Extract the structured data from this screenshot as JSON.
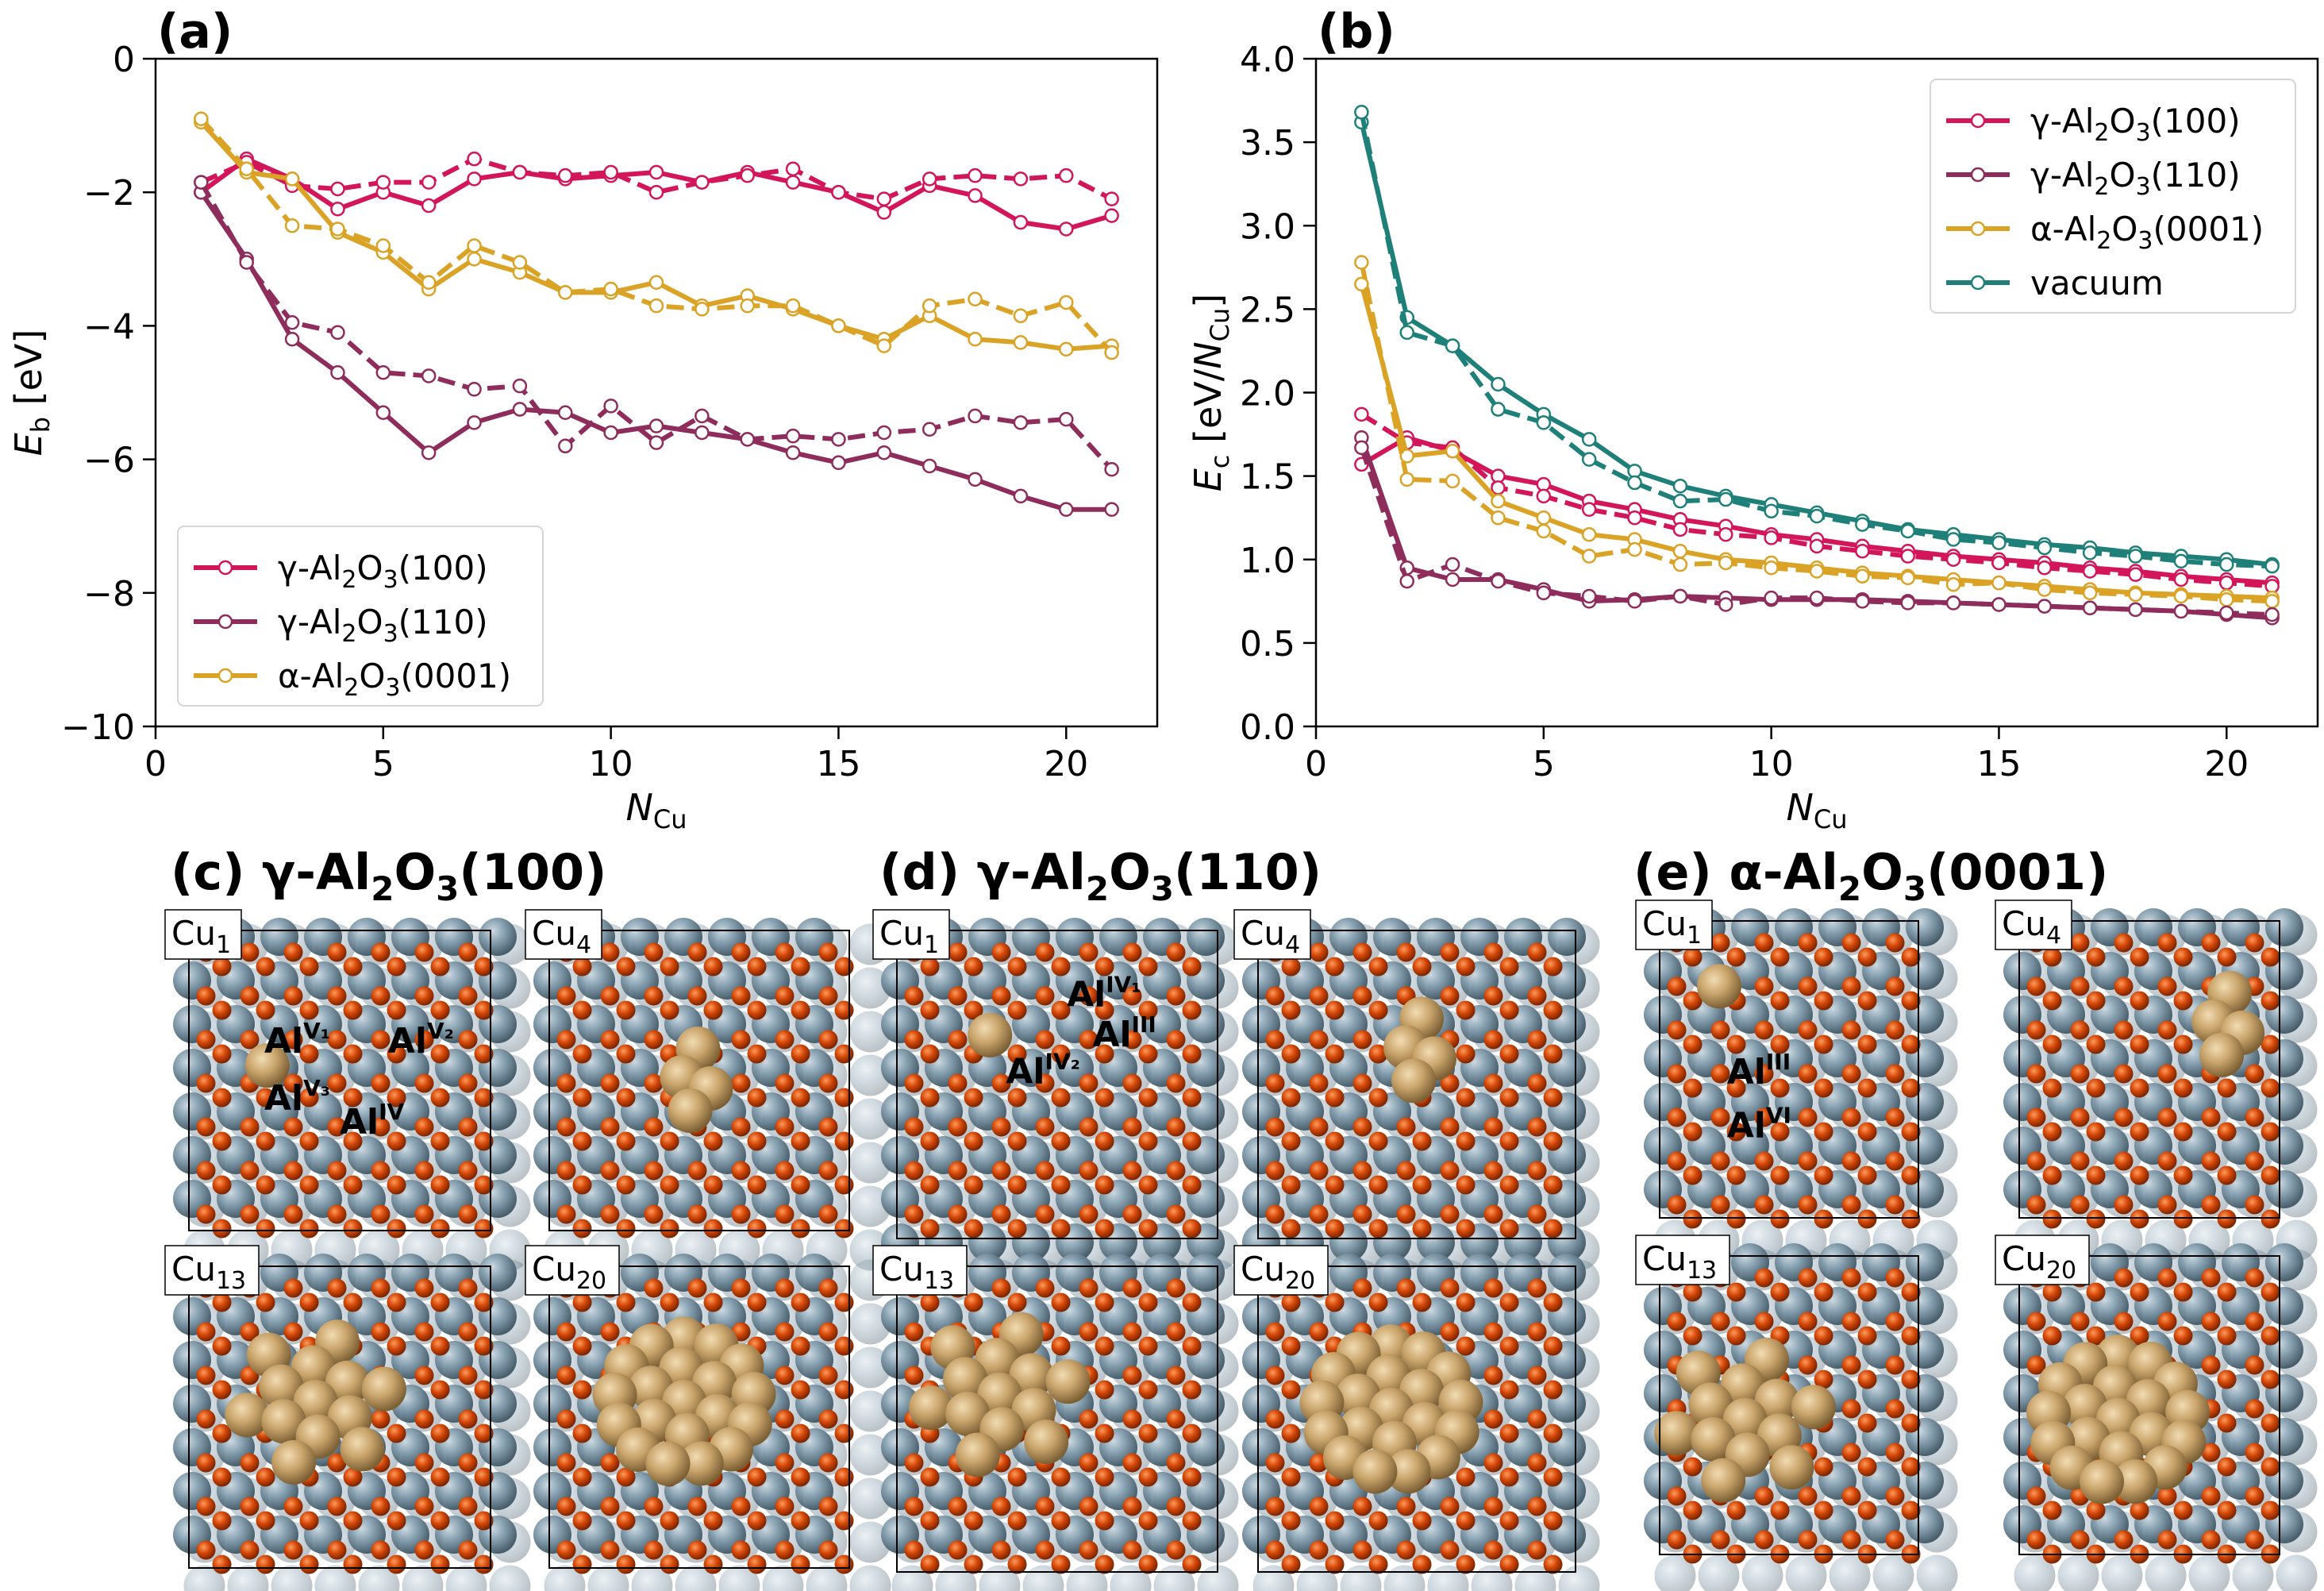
{
  "colors": {
    "g100": "#d3155a",
    "g110": "#8e2c5c",
    "a0001": "#dba325",
    "vacuum": "#1e8079",
    "al": "#7f9aab",
    "o": "#d44707",
    "cu": "#c9a46b",
    "frame": "#000000"
  },
  "chart_data": [
    {
      "type": "line",
      "panel_label": "(a)",
      "xlabel": "N",
      "xlabel_sub": "Cu",
      "ylabel": "E",
      "ylabel_sub": "b",
      "ylabel_unit": " [eV]",
      "xlim": [
        0,
        22
      ],
      "ylim": [
        -10,
        0
      ],
      "xticks": [
        0,
        5,
        10,
        15,
        20
      ],
      "yticks": [
        -10,
        -8,
        -6,
        -4,
        -2,
        0
      ],
      "ytick_labels": [
        "−10",
        "−8",
        "−6",
        "−4",
        "−2",
        "0"
      ],
      "x": [
        1,
        2,
        3,
        4,
        5,
        6,
        7,
        8,
        9,
        10,
        11,
        12,
        13,
        14,
        15,
        16,
        17,
        18,
        19,
        20,
        21
      ],
      "legend_loc": "lower-left",
      "legend": [
        {
          "key": "g100",
          "pre": "γ-Al",
          "s1": "2",
          "mid": "O",
          "s2": "3",
          "post": "(100)"
        },
        {
          "key": "g110",
          "pre": "γ-Al",
          "s1": "2",
          "mid": "O",
          "s2": "3",
          "post": "(110)"
        },
        {
          "key": "a0001",
          "pre": "α-Al",
          "s1": "2",
          "mid": "O",
          "s2": "3",
          "post": "(0001)"
        }
      ],
      "series": [
        {
          "key": "g100",
          "style": "solid",
          "values": [
            -2.0,
            -1.5,
            -1.8,
            -2.25,
            -2.0,
            -2.2,
            -1.8,
            -1.7,
            -1.8,
            -1.75,
            -1.7,
            -1.85,
            -1.7,
            -1.85,
            -2.0,
            -2.3,
            -1.9,
            -2.05,
            -2.45,
            -2.55,
            -2.35
          ]
        },
        {
          "key": "g100",
          "style": "dashed",
          "values": [
            -1.85,
            -1.55,
            -1.9,
            -1.95,
            -1.85,
            -1.85,
            -1.5,
            -1.7,
            -1.75,
            -1.7,
            -2.0,
            -1.85,
            -1.75,
            -1.65,
            -2.0,
            -2.1,
            -1.8,
            -1.75,
            -1.8,
            -1.75,
            -2.1
          ]
        },
        {
          "key": "g110",
          "style": "solid",
          "values": [
            -2.0,
            -3.0,
            -4.2,
            -4.7,
            -5.3,
            -5.9,
            -5.45,
            -5.25,
            -5.3,
            -5.6,
            -5.5,
            -5.6,
            -5.7,
            -5.9,
            -6.05,
            -5.9,
            -6.1,
            -6.3,
            -6.55,
            -6.75,
            -6.75
          ]
        },
        {
          "key": "g110",
          "style": "dashed",
          "values": [
            -1.85,
            -3.05,
            -3.95,
            -4.1,
            -4.7,
            -4.75,
            -4.95,
            -4.9,
            -5.8,
            -5.2,
            -5.75,
            -5.35,
            -5.7,
            -5.65,
            -5.7,
            -5.6,
            -5.55,
            -5.35,
            -5.45,
            -5.4,
            -6.15
          ]
        },
        {
          "key": "a0001",
          "style": "solid",
          "values": [
            -0.95,
            -1.7,
            -1.8,
            -2.6,
            -2.9,
            -3.45,
            -3.0,
            -3.2,
            -3.5,
            -3.5,
            -3.35,
            -3.7,
            -3.55,
            -3.75,
            -4.0,
            -4.2,
            -3.85,
            -4.2,
            -4.25,
            -4.35,
            -4.3
          ]
        },
        {
          "key": "a0001",
          "style": "dashed",
          "values": [
            -0.9,
            -1.65,
            -2.5,
            -2.55,
            -2.8,
            -3.35,
            -2.8,
            -3.05,
            -3.5,
            -3.45,
            -3.7,
            -3.75,
            -3.7,
            -3.7,
            -4.0,
            -4.3,
            -3.7,
            -3.6,
            -3.85,
            -3.65,
            -4.4
          ]
        }
      ]
    },
    {
      "type": "line",
      "panel_label": "(b)",
      "xlabel": "N",
      "xlabel_sub": "Cu",
      "ylabel": "E",
      "ylabel_sub": "c",
      "ylabel_unit_pre": " [eV/",
      "ylabel_unit_n": "N",
      "ylabel_unit_sub": "Cu",
      "ylabel_unit_post": "]",
      "xlim": [
        0,
        22
      ],
      "ylim": [
        0,
        4
      ],
      "xticks": [
        0,
        5,
        10,
        15,
        20
      ],
      "yticks": [
        0,
        0.5,
        1.0,
        1.5,
        2.0,
        2.5,
        3.0,
        3.5,
        4.0
      ],
      "ytick_labels": [
        "0.0",
        "0.5",
        "1.0",
        "1.5",
        "2.0",
        "2.5",
        "3.0",
        "3.5",
        "4.0"
      ],
      "x": [
        1,
        2,
        3,
        4,
        5,
        6,
        7,
        8,
        9,
        10,
        11,
        12,
        13,
        14,
        15,
        16,
        17,
        18,
        19,
        20,
        21
      ],
      "legend_loc": "upper-right",
      "legend": [
        {
          "key": "g100",
          "pre": "γ-Al",
          "s1": "2",
          "mid": "O",
          "s2": "3",
          "post": "(100)"
        },
        {
          "key": "g110",
          "pre": "γ-Al",
          "s1": "2",
          "mid": "O",
          "s2": "3",
          "post": "(110)"
        },
        {
          "key": "a0001",
          "pre": "α-Al",
          "s1": "2",
          "mid": "O",
          "s2": "3",
          "post": "(0001)"
        },
        {
          "key": "vacuum",
          "pre": "vacuum",
          "s1": "",
          "mid": "",
          "s2": "",
          "post": ""
        }
      ],
      "series": [
        {
          "key": "vacuum",
          "style": "solid",
          "values": [
            3.62,
            2.45,
            2.28,
            2.05,
            1.87,
            1.72,
            1.53,
            1.44,
            1.38,
            1.33,
            1.28,
            1.23,
            1.18,
            1.15,
            1.12,
            1.09,
            1.07,
            1.04,
            1.02,
            1.0,
            0.97
          ]
        },
        {
          "key": "vacuum",
          "style": "dashed",
          "values": [
            3.68,
            2.36,
            2.28,
            1.9,
            1.82,
            1.6,
            1.46,
            1.35,
            1.36,
            1.29,
            1.26,
            1.21,
            1.17,
            1.12,
            1.1,
            1.07,
            1.04,
            1.02,
            0.99,
            0.97,
            0.96
          ]
        },
        {
          "key": "g100",
          "style": "solid",
          "values": [
            1.57,
            1.73,
            1.65,
            1.5,
            1.45,
            1.35,
            1.3,
            1.24,
            1.2,
            1.15,
            1.12,
            1.08,
            1.05,
            1.02,
            1.0,
            0.98,
            0.95,
            0.93,
            0.9,
            0.88,
            0.86
          ]
        },
        {
          "key": "g100",
          "style": "dashed",
          "values": [
            1.87,
            1.7,
            1.67,
            1.43,
            1.38,
            1.3,
            1.25,
            1.18,
            1.15,
            1.13,
            1.08,
            1.05,
            1.02,
            1.0,
            0.98,
            0.95,
            0.93,
            0.91,
            0.88,
            0.86,
            0.84
          ]
        },
        {
          "key": "a0001",
          "style": "solid",
          "values": [
            2.65,
            1.62,
            1.65,
            1.35,
            1.25,
            1.15,
            1.12,
            1.05,
            1.0,
            0.98,
            0.95,
            0.92,
            0.9,
            0.88,
            0.86,
            0.84,
            0.82,
            0.8,
            0.79,
            0.78,
            0.77
          ]
        },
        {
          "key": "a0001",
          "style": "dashed",
          "values": [
            2.78,
            1.48,
            1.47,
            1.25,
            1.17,
            1.02,
            1.06,
            0.97,
            0.98,
            0.95,
            0.93,
            0.9,
            0.89,
            0.85,
            0.86,
            0.82,
            0.8,
            0.79,
            0.78,
            0.76,
            0.75
          ]
        },
        {
          "key": "g110",
          "style": "solid",
          "values": [
            1.73,
            0.95,
            0.88,
            0.88,
            0.82,
            0.75,
            0.76,
            0.78,
            0.77,
            0.76,
            0.76,
            0.76,
            0.75,
            0.74,
            0.73,
            0.72,
            0.71,
            0.7,
            0.69,
            0.67,
            0.65
          ]
        },
        {
          "key": "g110",
          "style": "dashed",
          "values": [
            1.67,
            0.87,
            0.97,
            0.87,
            0.8,
            0.78,
            0.75,
            0.78,
            0.73,
            0.77,
            0.77,
            0.75,
            0.74,
            0.74,
            0.73,
            0.72,
            0.71,
            0.7,
            0.69,
            0.68,
            0.67
          ]
        }
      ]
    }
  ],
  "structures": {
    "panels": [
      {
        "key": "c",
        "label_pre": "(c) γ-Al",
        "s1": "2",
        "mid": "O",
        "s2": "3",
        "post": "(100)",
        "cells": [
          {
            "tag": "Cu",
            "n": "1",
            "sites": [
              {
                "base": "Al",
                "sup": "V₁"
              },
              {
                "base": "Al",
                "sup": "V₂"
              },
              {
                "base": "Al",
                "sup": "V₃"
              },
              {
                "base": "Al",
                "sup": "IV"
              }
            ]
          },
          {
            "tag": "Cu",
            "n": "4",
            "sites": []
          },
          {
            "tag": "Cu",
            "n": "13",
            "sites": []
          },
          {
            "tag": "Cu",
            "n": "20",
            "sites": []
          }
        ]
      },
      {
        "key": "d",
        "label_pre": "(d) γ-Al",
        "s1": "2",
        "mid": "O",
        "s2": "3",
        "post": "(110)",
        "cells": [
          {
            "tag": "Cu",
            "n": "1",
            "sites": [
              {
                "base": "Al",
                "sup": "IV₁"
              },
              {
                "base": "Al",
                "sup": "III"
              },
              {
                "base": "Al",
                "sup": "IV₂"
              }
            ]
          },
          {
            "tag": "Cu",
            "n": "4",
            "sites": []
          },
          {
            "tag": "Cu",
            "n": "13",
            "sites": []
          },
          {
            "tag": "Cu",
            "n": "20",
            "sites": []
          }
        ]
      },
      {
        "key": "e",
        "label_pre": "(e) α-Al",
        "s1": "2",
        "mid": "O",
        "s2": "3",
        "post": "(0001)",
        "cells": [
          {
            "tag": "Cu",
            "n": "1",
            "sites": [
              {
                "base": "Al",
                "sup": "III"
              },
              {
                "base": "Al",
                "sup": "VI"
              }
            ]
          },
          {
            "tag": "Cu",
            "n": "4",
            "sites": []
          },
          {
            "tag": "Cu",
            "n": "13",
            "sites": []
          },
          {
            "tag": "Cu",
            "n": "20",
            "sites": []
          }
        ]
      }
    ]
  }
}
